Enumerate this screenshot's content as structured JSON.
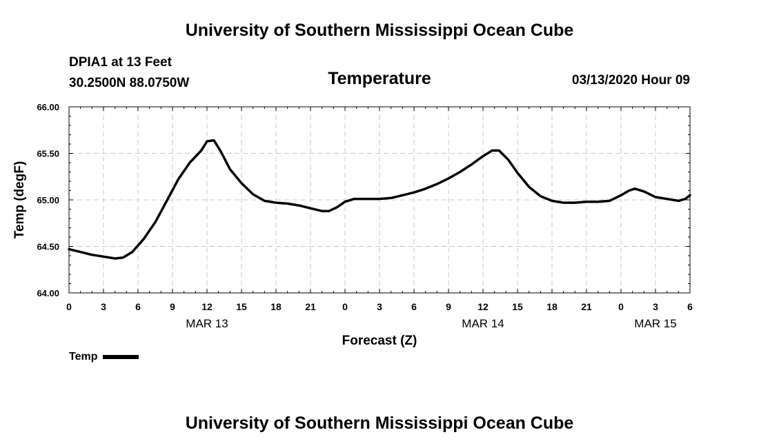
{
  "header": {
    "title": "University of Southern Mississippi Ocean Cube",
    "station_line1": "DPIA1 at 13 Feet",
    "station_line2": "30.2500N 88.0750W",
    "datetime": "03/13/2020 Hour 09"
  },
  "footer": {
    "title": "University of Southern Mississippi Ocean Cube"
  },
  "chart_data": {
    "type": "line",
    "title": "Temperature",
    "xlabel": "Forecast (Z)",
    "ylabel": "Temp (degF)",
    "x_unit": "hours from 03/13/2020 00Z",
    "xlim": [
      0,
      54
    ],
    "ylim": [
      64.0,
      66.0
    ],
    "grid": true,
    "legend_position": "bottom-left",
    "x_ticks": [
      {
        "x": 0,
        "label": "0"
      },
      {
        "x": 3,
        "label": "3"
      },
      {
        "x": 6,
        "label": "6"
      },
      {
        "x": 9,
        "label": "9"
      },
      {
        "x": 12,
        "label": "12"
      },
      {
        "x": 15,
        "label": "15"
      },
      {
        "x": 18,
        "label": "18"
      },
      {
        "x": 21,
        "label": "21"
      },
      {
        "x": 24,
        "label": "0"
      },
      {
        "x": 27,
        "label": "3"
      },
      {
        "x": 30,
        "label": "6"
      },
      {
        "x": 33,
        "label": "9"
      },
      {
        "x": 36,
        "label": "12"
      },
      {
        "x": 39,
        "label": "15"
      },
      {
        "x": 42,
        "label": "18"
      },
      {
        "x": 45,
        "label": "21"
      },
      {
        "x": 48,
        "label": "0"
      },
      {
        "x": 51,
        "label": "3"
      },
      {
        "x": 54,
        "label": "6"
      }
    ],
    "y_ticks": [
      {
        "y": 64.0,
        "label": "64.00"
      },
      {
        "y": 64.5,
        "label": "64.50"
      },
      {
        "y": 65.0,
        "label": "65.00"
      },
      {
        "y": 65.5,
        "label": "65.50"
      },
      {
        "y": 66.0,
        "label": "66.00"
      }
    ],
    "date_labels": [
      {
        "x": 12,
        "label": "MAR 13"
      },
      {
        "x": 36,
        "label": "MAR 14"
      },
      {
        "x": 51,
        "label": "MAR 15"
      }
    ],
    "series": [
      {
        "name": "Temp",
        "color": "#000000",
        "points": [
          [
            0,
            64.47
          ],
          [
            1,
            64.44
          ],
          [
            2,
            64.41
          ],
          [
            3,
            64.39
          ],
          [
            4,
            64.37
          ],
          [
            4.7,
            64.38
          ],
          [
            5.5,
            64.44
          ],
          [
            6.5,
            64.58
          ],
          [
            7.5,
            64.76
          ],
          [
            8.5,
            64.99
          ],
          [
            9.5,
            65.22
          ],
          [
            10.5,
            65.4
          ],
          [
            11.5,
            65.53
          ],
          [
            12.0,
            65.63
          ],
          [
            12.6,
            65.64
          ],
          [
            13.2,
            65.52
          ],
          [
            14.0,
            65.33
          ],
          [
            15.0,
            65.18
          ],
          [
            16.0,
            65.06
          ],
          [
            17.0,
            64.99
          ],
          [
            18.0,
            64.97
          ],
          [
            19.0,
            64.96
          ],
          [
            20.0,
            64.94
          ],
          [
            21.0,
            64.91
          ],
          [
            22.0,
            64.88
          ],
          [
            22.6,
            64.88
          ],
          [
            23.3,
            64.92
          ],
          [
            24.0,
            64.98
          ],
          [
            24.8,
            65.01
          ],
          [
            26.0,
            65.01
          ],
          [
            27.0,
            65.01
          ],
          [
            28.0,
            65.02
          ],
          [
            29.0,
            65.05
          ],
          [
            30.0,
            65.08
          ],
          [
            31.0,
            65.12
          ],
          [
            32.0,
            65.17
          ],
          [
            33.0,
            65.23
          ],
          [
            34.0,
            65.3
          ],
          [
            35.0,
            65.38
          ],
          [
            36.0,
            65.47
          ],
          [
            36.8,
            65.53
          ],
          [
            37.4,
            65.53
          ],
          [
            38.2,
            65.43
          ],
          [
            39.0,
            65.29
          ],
          [
            40.0,
            65.14
          ],
          [
            41.0,
            65.04
          ],
          [
            42.0,
            64.99
          ],
          [
            43.0,
            64.97
          ],
          [
            44.0,
            64.97
          ],
          [
            45.0,
            64.98
          ],
          [
            46.0,
            64.98
          ],
          [
            47.0,
            64.99
          ],
          [
            48.0,
            65.05
          ],
          [
            48.7,
            65.1
          ],
          [
            49.2,
            65.12
          ],
          [
            50.0,
            65.09
          ],
          [
            51.0,
            65.03
          ],
          [
            52.0,
            65.01
          ],
          [
            53.0,
            64.99
          ],
          [
            53.6,
            65.01
          ],
          [
            54.0,
            65.05
          ]
        ]
      }
    ]
  }
}
